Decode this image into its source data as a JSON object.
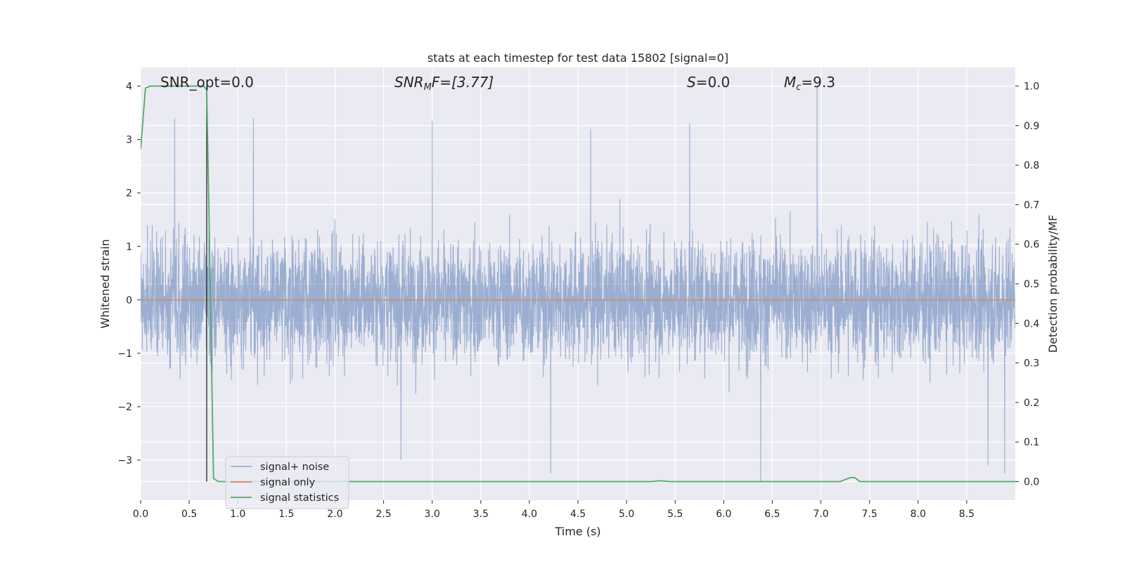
{
  "chart_data": {
    "type": "line",
    "title": "stats at each timestep for test data 15802 [signal=0]",
    "xlabel": "Time (s)",
    "ylabel_left": "Whitened strain",
    "ylabel_right": "Detection probability/MF",
    "xlim": [
      0.0,
      9.0
    ],
    "ylim_left": [
      -3.75,
      4.35
    ],
    "ylim_right": [
      -0.047,
      1.047
    ],
    "x_ticks": [
      "0.0",
      "0.5",
      "1.0",
      "1.5",
      "2.0",
      "2.5",
      "3.0",
      "3.5",
      "4.0",
      "4.5",
      "5.0",
      "5.5",
      "6.0",
      "6.5",
      "7.0",
      "7.5",
      "8.0",
      "8.5"
    ],
    "y_left_ticks": [
      "4",
      "3",
      "2",
      "1",
      "0",
      "−1",
      "−2",
      "−3"
    ],
    "y_right_ticks": [
      "1.0",
      "0.9",
      "0.8",
      "0.7",
      "0.6",
      "0.5",
      "0.4",
      "0.3",
      "0.2",
      "0.1",
      "0.0"
    ],
    "grid": true,
    "annotations": {
      "snr_opt": "SNR_opt=0.0",
      "snr_mf_main": "SNR",
      "snr_mf_sub": "M",
      "snr_mf_rest": "F=[3.77]",
      "s_main": "S",
      "s_rest": "=0.0",
      "mc_main": "M",
      "mc_sub": "c",
      "mc_rest": "=9.3"
    },
    "vertical_marker_x": 0.68,
    "legend_position": "lower-left",
    "series": [
      {
        "name": "signal+ noise",
        "axis": "left",
        "color": "#4c72b0",
        "description_range": [
          -3.4,
          4.0
        ],
        "peaks": [
          {
            "x": 0.35,
            "y": 3.4
          },
          {
            "x": 1.16,
            "y": 3.4
          },
          {
            "x": 3.0,
            "y": 3.35
          },
          {
            "x": 4.63,
            "y": 3.2
          },
          {
            "x": 5.65,
            "y": 3.3
          },
          {
            "x": 6.96,
            "y": 4.0
          },
          {
            "x": 6.38,
            "y": -3.4
          },
          {
            "x": 4.22,
            "y": -3.25
          },
          {
            "x": 2.68,
            "y": -3.0
          },
          {
            "x": 8.89,
            "y": -3.25
          },
          {
            "x": 8.72,
            "y": -3.1
          }
        ]
      },
      {
        "name": "signal only",
        "axis": "left",
        "color": "#dd8452",
        "x": [
          0.0,
          9.0
        ],
        "y": [
          0.0,
          0.0
        ]
      },
      {
        "name": "signal statistics",
        "axis": "right",
        "color": "#55a868",
        "x": [
          0.0,
          0.05,
          0.1,
          0.15,
          0.2,
          0.3,
          0.4,
          0.5,
          0.6,
          0.65,
          0.68,
          0.7,
          0.75,
          0.8,
          0.9,
          1.0,
          2.0,
          3.0,
          4.0,
          5.0,
          5.25,
          5.35,
          5.45,
          6.0,
          7.0,
          7.2,
          7.3,
          7.35,
          7.4,
          7.5,
          8.0,
          8.5,
          9.0
        ],
        "y": [
          0.84,
          0.995,
          1.0,
          1.0,
          1.0,
          1.0,
          1.0,
          1.0,
          1.0,
          1.0,
          0.99,
          0.72,
          0.008,
          0.0,
          0.0,
          0.0,
          0.0,
          0.0,
          0.0,
          0.0,
          0.0,
          0.002,
          0.0,
          0.0,
          0.0,
          0.0,
          0.01,
          0.01,
          0.0,
          0.0,
          0.0,
          0.0,
          0.0
        ]
      }
    ]
  }
}
